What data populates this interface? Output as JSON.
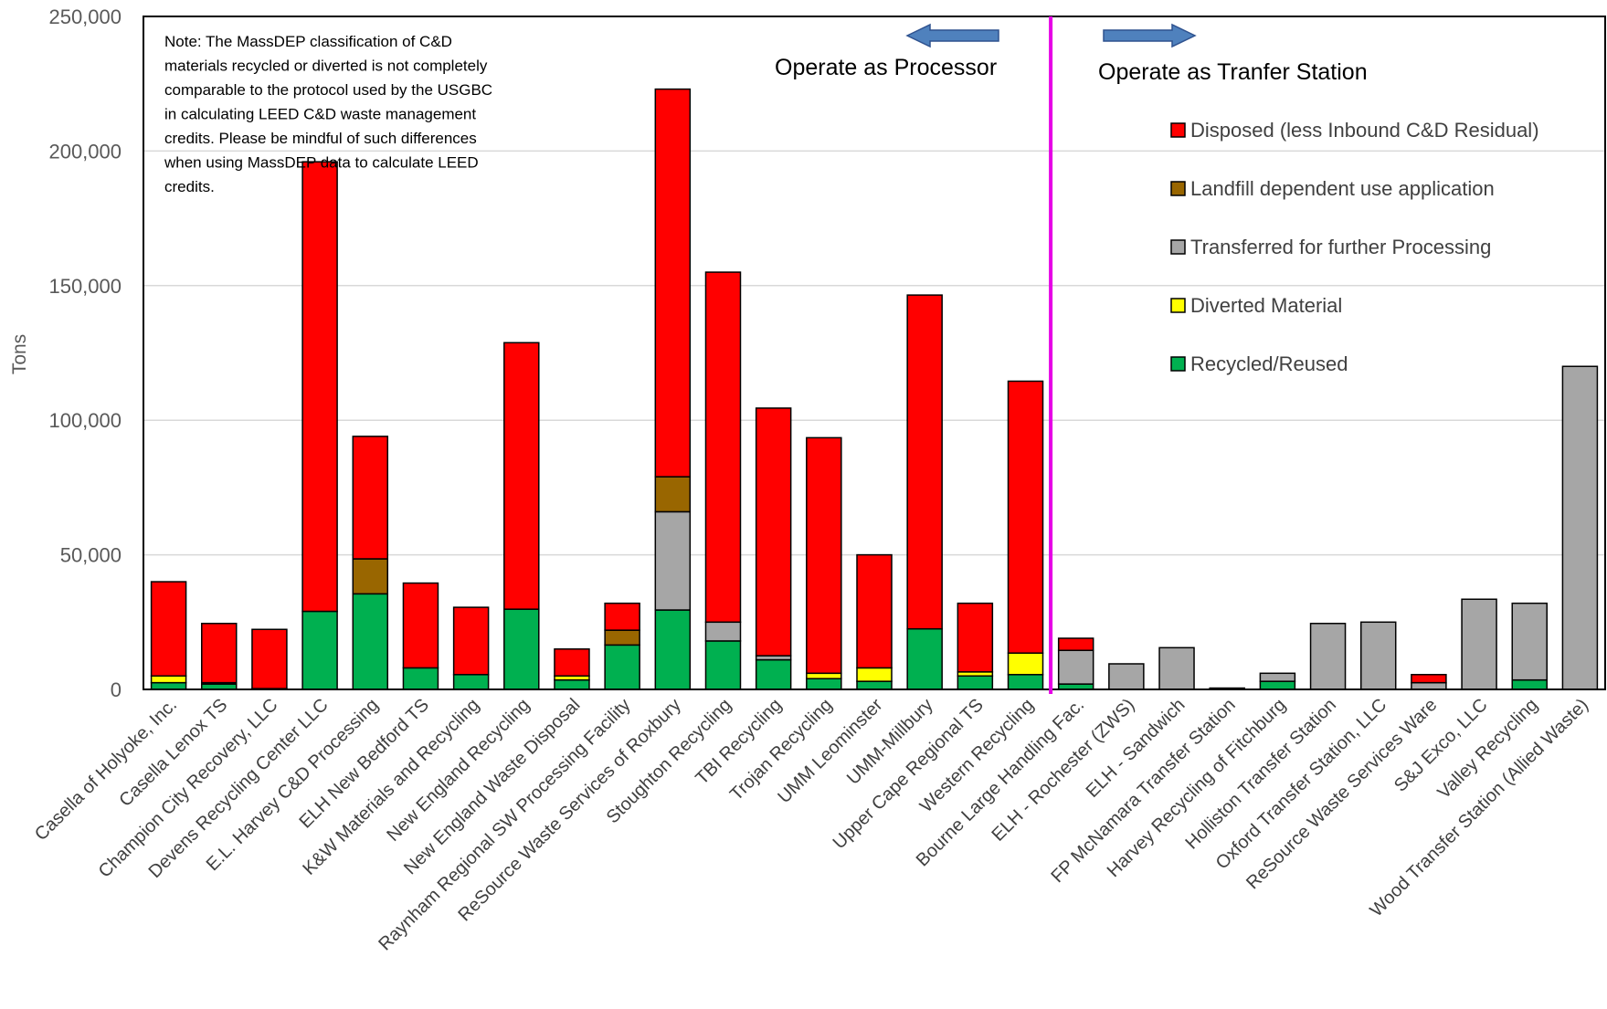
{
  "chart_data": {
    "type": "bar",
    "stacked": true,
    "ylabel": "Tons",
    "ylim": [
      0,
      250000
    ],
    "yticks": [
      0,
      50000,
      100000,
      150000,
      200000,
      250000
    ],
    "ytick_labels": [
      "0",
      "50,000",
      "100,000",
      "150,000",
      "200,000",
      "250,000"
    ],
    "grid": true,
    "legend_position": "top-right",
    "categories": [
      "Casella of Holyoke, Inc.",
      "Casella Lenox TS",
      "Champion City Recovery, LLC",
      "Devens Recycling Center LLC",
      "E.L. Harvey C&D Processing",
      "ELH New Bedford TS",
      "K&W Materials and Recycling",
      "New England Recycling",
      "New England Waste Disposal",
      "Raynham Regional SW Processing Facility",
      "ReSource Waste Services of Roxbury",
      "Stoughton Recycling",
      "TBI Recycling",
      "Trojan Recycling",
      "UMM Leominster",
      "UMM-Millbury",
      "Upper Cape Regional TS",
      "Western Recycling",
      "Bourne Large Handling Fac.",
      "ELH - Rochester (ZWS)",
      "ELH - Sandwich",
      "FP McNamara Transfer Station",
      "Harvey Recycling of Fitchburg",
      "Holliston Transfer Station",
      "Oxford Transfer Station, LLC",
      "ReSource Waste Services Ware",
      "S&J Exco, LLC",
      "Valley Recycling",
      "Wood Transfer Station (Allied Waste)"
    ],
    "series": [
      {
        "name": "Recycled/Reused",
        "color": "#00b050",
        "values": [
          2500,
          2000,
          300,
          29000,
          35500,
          8000,
          5500,
          29800,
          3500,
          16500,
          29500,
          18000,
          11000,
          4000,
          3000,
          22500,
          5000,
          5500,
          2000,
          0,
          0,
          0,
          3000,
          0,
          0,
          0,
          0,
          3500,
          0
        ]
      },
      {
        "name": "Diverted Material",
        "color": "#ffff00",
        "values": [
          2500,
          0,
          0,
          0,
          0,
          0,
          0,
          0,
          1500,
          0,
          0,
          0,
          0,
          2000,
          5000,
          0,
          1500,
          8000,
          0,
          0,
          0,
          0,
          0,
          0,
          0,
          0,
          0,
          0,
          0
        ]
      },
      {
        "name": "Transferred for further Processing",
        "color": "#a6a6a6",
        "values": [
          0,
          500,
          0,
          0,
          0,
          0,
          0,
          0,
          0,
          0,
          36500,
          7000,
          1500,
          0,
          0,
          0,
          0,
          0,
          12500,
          9500,
          15500,
          500,
          3000,
          24500,
          25000,
          2500,
          33500,
          28500,
          120000
        ]
      },
      {
        "name": "Landfill dependent use  application",
        "color": "#996600",
        "values": [
          0,
          0,
          0,
          0,
          13000,
          0,
          0,
          0,
          0,
          5500,
          13000,
          0,
          0,
          0,
          0,
          0,
          0,
          0,
          0,
          0,
          0,
          0,
          0,
          0,
          0,
          0,
          0,
          0,
          0
        ]
      },
      {
        "name": "Disposed (less Inbound C&D Residual)",
        "color": "#ff0000",
        "values": [
          35000,
          22000,
          22000,
          167000,
          45500,
          31500,
          25000,
          99000,
          10000,
          10000,
          144000,
          130000,
          92000,
          87500,
          42000,
          124000,
          25500,
          101000,
          4500,
          0,
          0,
          0,
          0,
          0,
          0,
          3000,
          0,
          0,
          0
        ]
      }
    ],
    "annotations": {
      "note": [
        "Note: The MassDEP classification of C&D",
        "materials recycled or diverted is not completely",
        "comparable to the protocol used by the USGBC",
        "in calculating LEED C&D waste management",
        "credits.  Please be mindful of such differences",
        "when using MassDEP data to calculate LEED",
        "credits."
      ],
      "left_region_label": "Operate as Processor",
      "right_region_label": "Operate as Tranfer Station",
      "divider_after_index": 17,
      "divider_color": "#e600e6",
      "arrow_color": "#4f81bd"
    }
  }
}
